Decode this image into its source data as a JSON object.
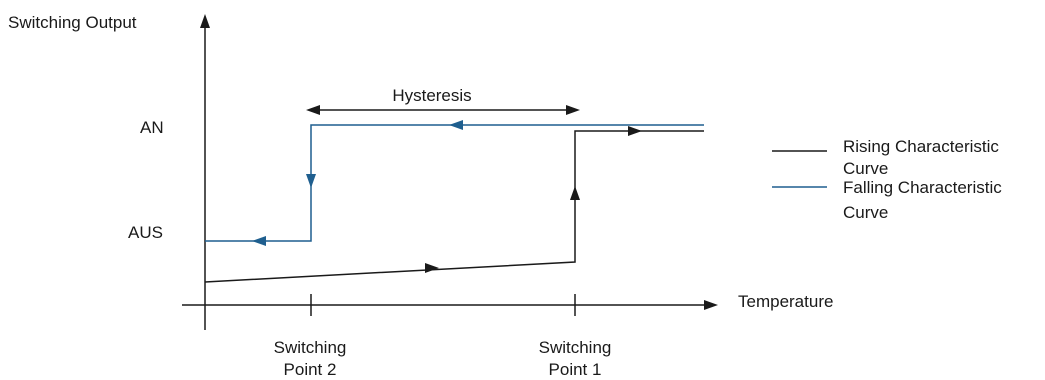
{
  "y_axis_label": "Switching Output",
  "x_axis_label": "Temperature",
  "y_levels": {
    "on": "AN",
    "off": "AUS"
  },
  "hysteresis_label": "Hysteresis",
  "x_ticks": [
    {
      "line1": "Switching",
      "line2": "Point 2"
    },
    {
      "line1": "Switching",
      "line2": "Point 1"
    }
  ],
  "legend": [
    {
      "line1": "Rising Characteristic",
      "line2": "Curve",
      "color": "#1a1a1a"
    },
    {
      "line1": "Falling Characteristic",
      "line2": "Curve",
      "color": "#1f5f8f"
    }
  ],
  "colors": {
    "rising": "#1a1a1a",
    "falling": "#1f5f8f",
    "axis": "#1a1a1a"
  }
}
